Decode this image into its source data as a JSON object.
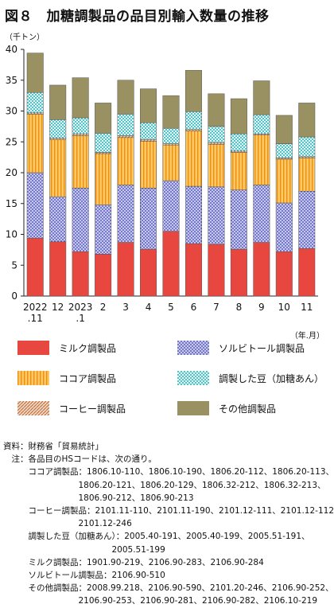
{
  "title": "図８　加糖調製品の品目別輸入数量の推移",
  "chart_data": {
    "type": "bar",
    "stacked": true,
    "y_unit_label": "（千トン）",
    "x_unit_label": "（年.月）",
    "ylim": [
      0,
      40
    ],
    "yticks": [
      "0",
      "5",
      "10",
      "15",
      "20",
      "25",
      "30",
      "35",
      "40"
    ],
    "categories": [
      "2022\n.11",
      "12",
      "2023\n.1",
      "2",
      "3",
      "4",
      "5",
      "6",
      "7",
      "8",
      "9",
      "10",
      "11"
    ],
    "series": [
      {
        "name": "ミルク調製品",
        "color": "#e8473f",
        "pattern": "solid",
        "values": [
          9.4,
          8.8,
          7.2,
          6.8,
          8.7,
          7.6,
          10.5,
          8.5,
          8.4,
          7.6,
          8.7,
          7.2,
          7.7
        ]
      },
      {
        "name": "ソルビトール調製品",
        "color": "#7b7fcf",
        "pattern": "dots",
        "values": [
          10.6,
          7.3,
          10.3,
          8.0,
          9.3,
          9.9,
          8.2,
          9.3,
          9.3,
          9.6,
          9.3,
          7.9,
          9.3
        ]
      },
      {
        "name": "ココア調製品",
        "color": "#f6a623",
        "pattern": "vlines",
        "values": [
          9.5,
          9.3,
          8.5,
          8.3,
          7.7,
          7.6,
          5.8,
          9.0,
          6.9,
          6.1,
          8.1,
          7.1,
          5.4
        ]
      },
      {
        "name": "コーヒー調製品",
        "color": "#d9a27a",
        "pattern": "diag",
        "values": [
          0.2,
          0.2,
          0.3,
          0.2,
          0.3,
          0.3,
          0.2,
          0.2,
          0.3,
          0.2,
          0.2,
          0.2,
          0.2
        ]
      },
      {
        "name": "調製した豆（加糖あん）",
        "color": "#7fd3d6",
        "pattern": "checker",
        "values": [
          3.3,
          3.0,
          2.6,
          3.1,
          3.5,
          2.7,
          2.5,
          2.9,
          2.6,
          2.8,
          3.1,
          2.3,
          3.2
        ]
      },
      {
        "name": "その他調製品",
        "color": "#9a9162",
        "pattern": "solid",
        "values": [
          6.4,
          5.6,
          6.5,
          4.9,
          5.5,
          5.5,
          5.3,
          6.7,
          5.3,
          5.7,
          5.5,
          4.6,
          5.5
        ]
      }
    ],
    "legend_position": "bottom",
    "grid": false
  },
  "legend": {
    "milk": "ミルク調製品",
    "sorbitol": "ソルビトール調製品",
    "cocoa": "ココア調製品",
    "beans": "調製した豆（加糖あん）",
    "coffee": "コーヒー調製品",
    "other": "その他調製品"
  },
  "notes": [
    "資料：財務省「貿易統計」",
    "　注：各品目のHSコードは、次の通り。",
    "　　　ココア調製品：1806.10-110、1806.10-190、1806.20-112、1806.20-113、",
    "　　　　　　　　　1806.20-121、1806.20-129、1806.32-212、1806.32-213、",
    "　　　　　　　　　1806.90-212、1806.90-213",
    "　　　コーヒー調製品：2101.11-110、2101.11-190、2101.12-111、2101.12-112、",
    "　　　　　　　　　2101.12-246",
    "　　　調製した豆（加糖あん）：2005.40-191、2005.40-199、2005.51-191、",
    "　　　　　　　　　　　　　2005.51-199",
    "　　　ミルク調製品：1901.90-219、2106.90-283、2106.90-284",
    "　　　ソルビトール調製品：2106.90-510",
    "　　　その他調製品：2008.99.218、2106.90-590、2101.20-246、2106.90-252、",
    "　　　　　　　　　2106.90-253、2106.90-281、2106.90-282、2106.10-219"
  ]
}
